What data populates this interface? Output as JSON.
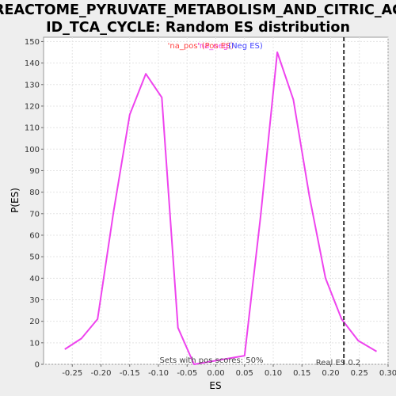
{
  "chart_data": {
    "type": "line",
    "title_lines": [
      "REACTOME_PYRUVATE_METABOLISM_AND_CITRIC_AC",
      "ID_TCA_CYCLE: Random ES distribution"
    ],
    "xlabel": "ES",
    "ylabel": "P(ES)",
    "xlim": [
      -0.3,
      0.3
    ],
    "ylim": [
      0,
      152
    ],
    "xticks": [
      -0.25,
      -0.2,
      -0.15,
      -0.1,
      -0.05,
      0.0,
      0.05,
      0.1,
      0.15,
      0.2,
      0.25,
      0.3
    ],
    "xtick_labels": [
      "-0.25",
      "-0.20",
      "-0.15",
      "-0.10",
      "-0.05",
      "0.00",
      "0.05",
      "0.10",
      "0.15",
      "0.20",
      "0.25",
      "0.30"
    ],
    "yticks": [
      0,
      10,
      20,
      30,
      40,
      50,
      60,
      70,
      80,
      90,
      100,
      110,
      120,
      130,
      140,
      150
    ],
    "ytick_labels": [
      "0",
      "10",
      "20",
      "30",
      "40",
      "50",
      "60",
      "70",
      "80",
      "90",
      "100",
      "110",
      "120",
      "130",
      "140",
      "150"
    ],
    "grid": true,
    "series": [
      {
        "color": "#ee44ee",
        "x": [
          -0.263,
          -0.234,
          -0.206,
          -0.178,
          -0.15,
          -0.122,
          -0.094,
          -0.066,
          -0.038,
          0.05,
          0.078,
          0.107,
          0.135,
          0.163,
          0.191,
          0.219,
          0.248,
          0.28
        ],
        "y": [
          7,
          12,
          21,
          71,
          116,
          135,
          124,
          17,
          0,
          4,
          69,
          145,
          123,
          78,
          40,
          21,
          11,
          6
        ]
      }
    ],
    "reference_line": {
      "x": 0.223,
      "color": "#333333",
      "style": "dashed",
      "label": "Real ES 0.2"
    },
    "legend": {
      "placement": "top-center",
      "entries": [
        {
          "text": "'na_pos'",
          "color": "#ff4444"
        },
        {
          "text": "'na_neg'",
          "color": "#ee44ee"
        },
        {
          "text": "(Pos ES)",
          "color": "#ff4444"
        },
        {
          "text": "(Neg ES)",
          "color": "#4444ff"
        }
      ]
    },
    "annotation": "Sets with pos scores: 50%"
  }
}
